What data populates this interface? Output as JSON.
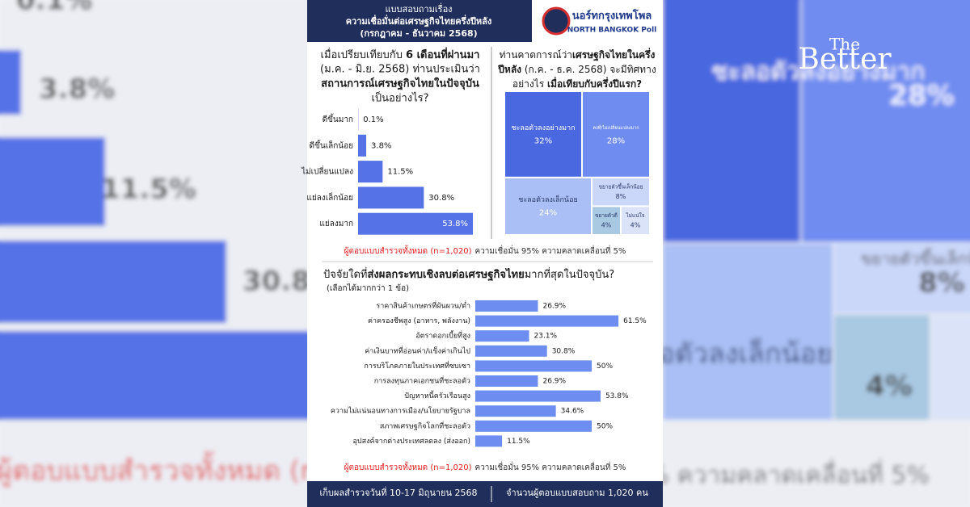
{
  "header": {
    "lines": [
      "แบบสอบถามเรื่อง",
      "ความเชื่อมั่นต่อเศรษฐกิจไทยครึ่งปีหลัง",
      "(กรกฎาคม - ธันวาคม 2568)"
    ],
    "logo_th": "นอร์ทกรุงเทพโพล",
    "logo_en": "NORTH BANGKOK Poll"
  },
  "brand": {
    "small": "The",
    "large": "Better"
  },
  "chart_data": [
    {
      "type": "bar",
      "title": [
        [
          "เมื่อเปรียบเทียบกับ ",
          "6 เดือนที่ผ่านมา"
        ],
        [
          "(ม.ค. - มิ.ย. 2568) ท่านประเมินว่า"
        ],
        [
          "สถานการณ์เศรษฐกิจไทยในปัจจุบัน"
        ],
        [
          "เป็นอย่างไร?"
        ]
      ],
      "categories": [
        "ดีขึ้นมาก",
        "ดีขึ้นเล็กน้อย",
        "ไม่เปลี่ยนแปลง",
        "แย่ลงเล็กน้อย",
        "แย่ลงมาก"
      ],
      "values": [
        0.1,
        3.8,
        11.5,
        30.8,
        53.8
      ],
      "value_labels": [
        "0.1%",
        "3.8%",
        "11.5%",
        "30.8%",
        "53.8%"
      ],
      "color": "#5573e6",
      "note": {
        "highlight": "ผู้ตอบแบบสำรวจทั้งหมด (n=1,020)",
        "text": "ความเชื่อมั่น 95% ความคลาดเคลื่อนที่ 5%"
      }
    },
    {
      "type": "treemap",
      "title": [
        [
          "ท่านคาดการณ์ว่า",
          "เศรษฐกิจไทยในครึ่ง"
        ],
        [
          "ปีหลัง",
          " (ก.ค. - ธ.ค. 2568) จะมีทิศทาง"
        ],
        [
          "อย่างไร ",
          "เมื่อเทียบกับครึ่งปีแรก?"
        ]
      ],
      "categories": [
        "ชะลอตัวลงอย่างมาก",
        "คงที่/ไม่เปลี่ยนแปลงมาก",
        "ชะลอตัวลงเล็กน้อย",
        "ขยายตัวขึ้นเล็กน้อย",
        "ขยายตัวดี",
        "ไม่แน่ใจ"
      ],
      "values": [
        32,
        28,
        24,
        8,
        4,
        4
      ],
      "value_labels": [
        "32%",
        "28%",
        "24%",
        "8%",
        "4%",
        "4%"
      ],
      "colors": [
        "#4a68e0",
        "#6f8cf0",
        "#a9bff5",
        "#cad7f9",
        "#a9c8e2",
        "#dbe3f8"
      ]
    },
    {
      "type": "bar",
      "title": [
        [
          "ปัจจัยใดที่",
          "ส่งผลกระทบเชิงลบต่อเศรษฐกิจไทย",
          "มากที่สุดในปัจจุบัน?"
        ]
      ],
      "subtitle": "(เลือกได้มากกว่า 1 ข้อ)",
      "categories": [
        "ราคาสินค้าเกษตรที่ผันผวน/ต่ำ",
        "ค่าครองชีพสูง (อาหาร, พลังงาน)",
        "อัตราดอกเบี้ยที่สูง",
        "ค่าเงินบาทที่อ่อนค่า/แข็งค่าเกินไป",
        "การบริโภคภายในประเทศที่ซบเซา",
        "การลงทุนภาคเอกชนที่ชะลอตัว",
        "ปัญหาหนี้ครัวเรือนสูง",
        "ความไม่แน่นอนทางการเมือง/นโยบายรัฐบาล",
        "สภาพเศรษฐกิจโลกที่ชะลอตัว",
        "อุปสงค์จากต่างประเทศลดลง (ส่งออก)"
      ],
      "values": [
        26.9,
        61.5,
        23.1,
        30.8,
        50,
        26.9,
        53.8,
        34.6,
        50,
        11.5
      ],
      "value_labels": [
        "26.9%",
        "61.5%",
        "23.1%",
        "30.8%",
        "50%",
        "26.9%",
        "53.8%",
        "34.6%",
        "50%",
        "11.5%"
      ],
      "color": "#6d8ef0",
      "note": {
        "highlight": "ผู้ตอบแบบสำรวจทั้งหมด (n=1,020)",
        "text": "ความเชื่อมั่น 95% ความคลาดเคลื่อนที่ 5%"
      }
    }
  ],
  "footer": {
    "left": "เก็บผลสำรวจวันที่ 10-17 มิถุนายน 2568",
    "right": "จำนวนผู้ตอบแบบสอบถาม 1,020 คน"
  }
}
